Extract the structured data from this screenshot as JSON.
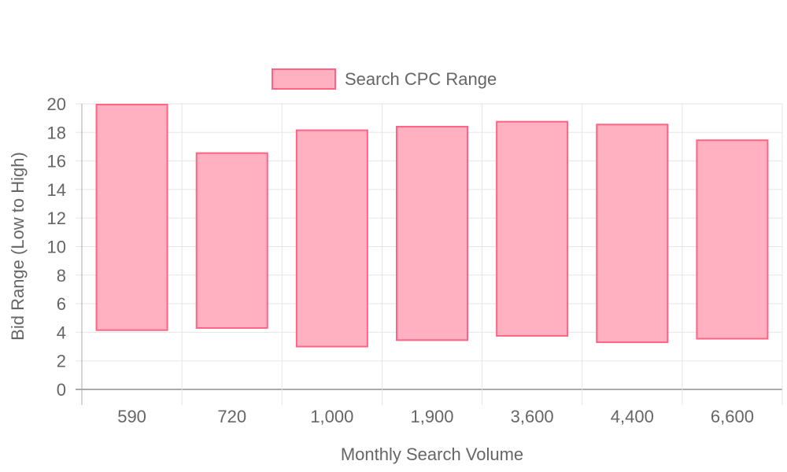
{
  "chart_data": {
    "type": "bar",
    "subtype": "floating-range",
    "categories": [
      "590",
      "720",
      "1,000",
      "1,900",
      "3,600",
      "4,400",
      "6,600"
    ],
    "series": [
      {
        "name": "Search CPC Range",
        "low": [
          4.15,
          4.3,
          3.0,
          3.45,
          3.75,
          3.3,
          3.55
        ],
        "high": [
          19.95,
          16.55,
          18.15,
          18.4,
          18.75,
          18.55,
          17.45
        ],
        "fill_color": "#ffb1c1",
        "border_color": "#ff6384"
      }
    ],
    "xlabel": "Monthly Search Volume",
    "ylabel": "Bid Range (Low to High)",
    "ylim": [
      0,
      20
    ],
    "ytick_step": 2,
    "grid": true,
    "legend_position": "top",
    "colors": {
      "grid": "#e5e5e5",
      "axis": "#aaaaaa",
      "text": "#666666"
    }
  }
}
